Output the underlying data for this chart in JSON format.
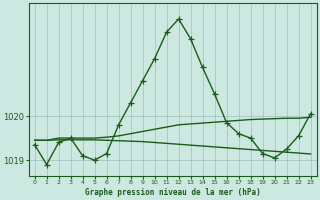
{
  "xlabel": "Graphe pression niveau de la mer (hPa)",
  "hours": [
    0,
    1,
    2,
    3,
    4,
    5,
    6,
    7,
    8,
    9,
    10,
    11,
    12,
    13,
    14,
    15,
    16,
    17,
    18,
    19,
    20,
    21,
    22,
    23
  ],
  "main_line": [
    1019.35,
    1018.9,
    1019.4,
    1019.5,
    1019.1,
    1019.0,
    1019.15,
    1019.8,
    1020.3,
    1020.8,
    1021.3,
    1021.9,
    1022.2,
    1021.75,
    1021.1,
    1020.5,
    1019.85,
    1019.6,
    1019.5,
    1019.15,
    1019.05,
    1019.25,
    1019.55,
    1020.05
  ],
  "upper_line": [
    1019.45,
    1019.45,
    1019.5,
    1019.5,
    1019.5,
    1019.5,
    1019.52,
    1019.55,
    1019.6,
    1019.65,
    1019.7,
    1019.75,
    1019.8,
    1019.82,
    1019.84,
    1019.86,
    1019.88,
    1019.9,
    1019.92,
    1019.93,
    1019.94,
    1019.95,
    1019.95,
    1019.97
  ],
  "lower_line": [
    1019.45,
    1019.45,
    1019.46,
    1019.46,
    1019.46,
    1019.46,
    1019.45,
    1019.44,
    1019.43,
    1019.42,
    1019.4,
    1019.38,
    1019.36,
    1019.34,
    1019.32,
    1019.3,
    1019.28,
    1019.26,
    1019.24,
    1019.22,
    1019.2,
    1019.18,
    1019.16,
    1019.14
  ],
  "bg_color": "#cce8e0",
  "line_color": "#1a5c1a",
  "grid_color": "#99bbbb",
  "ylim_min": 1018.65,
  "ylim_max": 1022.55,
  "yticks": [
    1019,
    1020
  ],
  "xtick_labels": [
    "0",
    "1",
    "2",
    "3",
    "4",
    "5",
    "6",
    "7",
    "8",
    "9",
    "10",
    "11",
    "12",
    "13",
    "14",
    "15",
    "16",
    "17",
    "18",
    "19",
    "20",
    "21",
    "22",
    "23"
  ],
  "marker": "+",
  "marker_size": 4,
  "linewidth": 1.0
}
